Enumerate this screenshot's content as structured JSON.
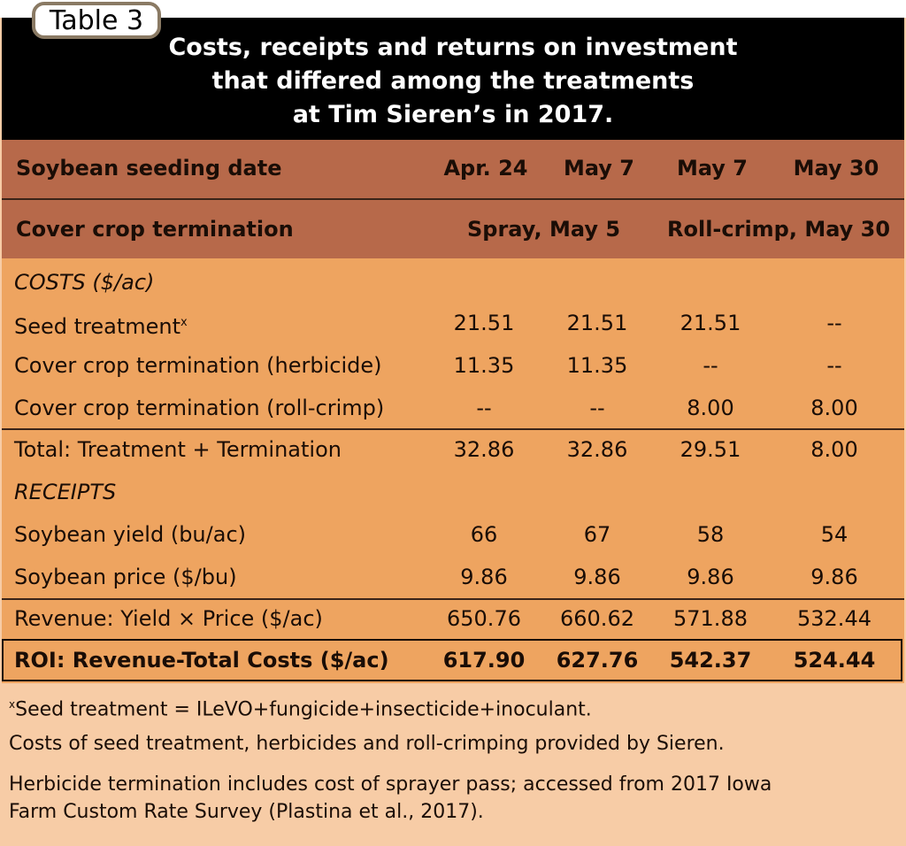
{
  "tab_label": "Table 3",
  "title": [
    "Costs, receipts and returns on investment",
    "that differed among the treatments",
    "at Tim Sieren’s in 2017."
  ],
  "header": {
    "seeding_label": "Soybean seeding date",
    "seeding_dates": [
      "Apr. 24",
      "May 7",
      "May 7",
      "May 30"
    ],
    "termination_label": "Cover crop termination",
    "termination_groups": [
      "Spray, May 5",
      "Roll-crimp, May 30"
    ]
  },
  "sections": {
    "costs": "COSTS ($/ac)",
    "receipts": "RECEIPTS"
  },
  "rows": [
    {
      "label": "Seed treatment",
      "sup": "x",
      "values": [
        "21.51",
        "21.51",
        "21.51",
        "--"
      ]
    },
    {
      "label": "Cover crop termination (herbicide)",
      "values": [
        "11.35",
        "11.35",
        "--",
        "--"
      ]
    },
    {
      "label": "Cover crop termination (roll-crimp)",
      "values": [
        "--",
        "--",
        "8.00",
        "8.00"
      ]
    },
    {
      "label": "Total: Treatment + Termination",
      "values": [
        "32.86",
        "32.86",
        "29.51",
        "8.00"
      ]
    },
    {
      "label": "Soybean yield (bu/ac)",
      "values": [
        "66",
        "67",
        "58",
        "54"
      ]
    },
    {
      "label": "Soybean price ($/bu)",
      "values": [
        "9.86",
        "9.86",
        "9.86",
        "9.86"
      ]
    },
    {
      "label": "Revenue: Yield × Price ($/ac)",
      "values": [
        "650.76",
        "660.62",
        "571.88",
        "532.44"
      ]
    },
    {
      "label": "ROI: Revenue-Total Costs ($/ac)",
      "values": [
        "617.90",
        "627.76",
        "542.37",
        "524.44"
      ]
    }
  ],
  "footnotes": {
    "sup": "x",
    "note1": "Seed treatment = ILeVO+fungicide+insecticide+inoculant.",
    "note2": "Costs of seed treatment, herbicides and roll-crimping provided by Sieren.",
    "note3_line1": "Herbicide termination includes cost of sprayer pass; accessed from 2017 Iowa",
    "note3_line2": "Farm Custom Rate Survey (Plastina et al., 2017)."
  },
  "colors": {
    "title_bg": "#000000",
    "header_bg": "#b7694a",
    "body_bg": "#eea460",
    "footer_bg": "#f7cca6"
  }
}
